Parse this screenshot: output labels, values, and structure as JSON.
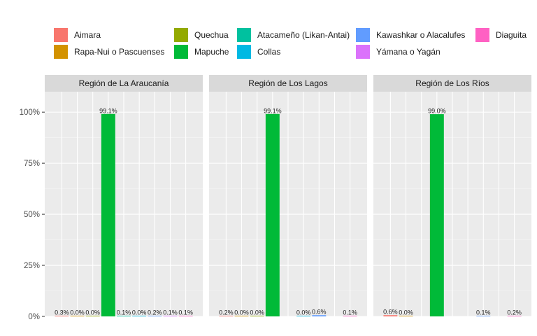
{
  "chart_data": {
    "type": "bar",
    "categories": [
      "Aimara",
      "Rapa-Nui o Pascuenses",
      "Quechua",
      "Mapuche",
      "Atacameño (Likan-Antai)",
      "Collas",
      "Kawashkar o Alacalufes",
      "Yámana o Yagán",
      "Diaguita"
    ],
    "colors": [
      "#F8766D",
      "#D39200",
      "#93AA00",
      "#00BA38",
      "#00C19F",
      "#00B9E3",
      "#619CFF",
      "#DB72FB",
      "#FF61C3"
    ],
    "ylim": [
      0,
      1.1
    ],
    "yticks": [
      0,
      0.25,
      0.5,
      0.75,
      1.0
    ],
    "ytick_labels": [
      "0%",
      "25%",
      "50%",
      "75%",
      "100%"
    ],
    "grid": true,
    "legend_position": "top",
    "panels": [
      {
        "title": "Región de La Araucanía",
        "values": [
          0.003,
          0.0,
          0.0,
          0.991,
          0.001,
          0.0,
          0.002,
          0.001,
          0.001
        ],
        "labels": [
          "0.3%",
          "0.0%",
          "0.0%",
          "99.1%",
          "0.1%",
          "0.0%",
          "0.2%",
          "0.1%",
          "0.1%"
        ]
      },
      {
        "title": "Región de Los Lagos",
        "values": [
          0.002,
          0.0,
          0.0,
          0.991,
          null,
          0.0,
          0.006,
          null,
          0.001
        ],
        "labels": [
          "0.2%",
          "0.0%",
          "0.0%",
          "99.1%",
          null,
          "0.0%",
          "0.6%",
          null,
          "0.1%"
        ]
      },
      {
        "title": "Región de Los Ríos",
        "values": [
          0.006,
          0.0,
          null,
          0.99,
          null,
          null,
          0.001,
          null,
          0.002
        ],
        "labels": [
          "0.6%",
          "0.0%",
          null,
          "99.0%",
          null,
          null,
          "0.1%",
          null,
          "0.2%"
        ]
      }
    ]
  }
}
